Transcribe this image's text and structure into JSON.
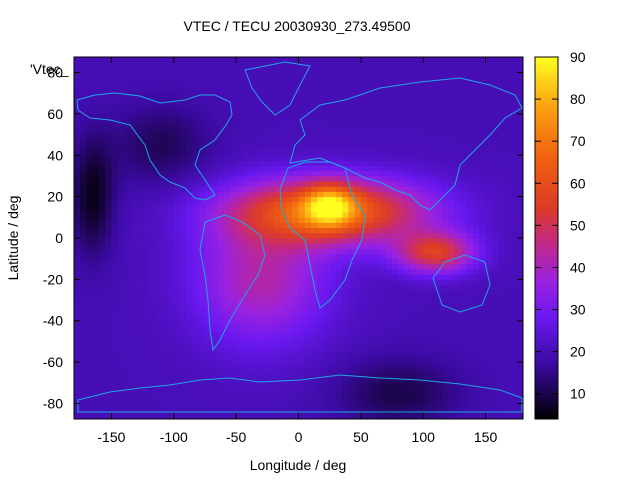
{
  "chart_data": {
    "type": "heatmap",
    "title": "VTEC / TECU 20030930_273.49500",
    "xlabel": "Longitude / deg",
    "ylabel": "Latitude / deg",
    "key_label": "'Vtec_",
    "xlim": [
      -180,
      180
    ],
    "ylim": [
      -87.5,
      87.5
    ],
    "x_ticks": [
      -150,
      -100,
      -50,
      0,
      50,
      100,
      150
    ],
    "y_ticks": [
      -80,
      -60,
      -40,
      -20,
      0,
      20,
      40,
      60,
      80
    ],
    "colorbar": {
      "min": 4,
      "max": 90,
      "ticks": [
        10,
        20,
        30,
        40,
        50,
        60,
        70,
        80,
        90
      ],
      "palette": "black-blue-purple-red-orange-yellow"
    },
    "grid": false,
    "features": [
      {
        "lon": 25,
        "lat": 13,
        "sigma_lon": 55,
        "sigma_lat": 11,
        "value": 48
      },
      {
        "lon": 25,
        "lat": 16,
        "sigma_lon": 14,
        "sigma_lat": 7,
        "value": 30
      },
      {
        "lon": 110,
        "lat": -7,
        "sigma_lon": 22,
        "sigma_lat": 7,
        "value": 34
      },
      {
        "lon": -30,
        "lat": -20,
        "sigma_lon": 38,
        "sigma_lat": 22,
        "value": 22
      },
      {
        "lon": -165,
        "lat": 20,
        "sigma_lon": 12,
        "sigma_lat": 20,
        "value": -14
      },
      {
        "lon": -110,
        "lat": 45,
        "sigma_lon": 28,
        "sigma_lat": 14,
        "value": -9
      },
      {
        "lon": 80,
        "lat": -75,
        "sigma_lon": 35,
        "sigma_lat": 12,
        "value": -10
      }
    ],
    "baseline": 20
  }
}
